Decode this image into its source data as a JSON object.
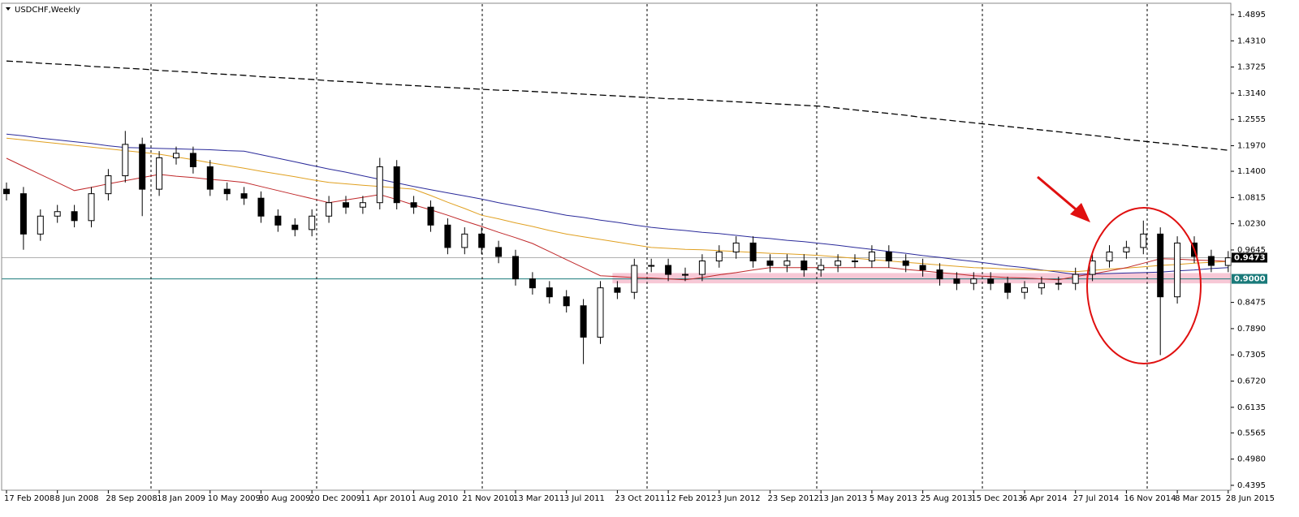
{
  "chart_data": {
    "type": "candlestick",
    "title": "USDCHF,Weekly",
    "categories": [
      "17 Feb 2008",
      null,
      null,
      "8 Jun 2008",
      null,
      null,
      "28 Sep 2008",
      null,
      null,
      "18 Jan 2009",
      null,
      null,
      "10 May 2009",
      null,
      null,
      "30 Aug 2009",
      null,
      null,
      "20 Dec 2009",
      null,
      null,
      "11 Apr 2010",
      null,
      null,
      "1 Aug 2010",
      null,
      null,
      "21 Nov 2010",
      null,
      null,
      "13 Mar 2011",
      null,
      null,
      "3 Jul 2011",
      null,
      null,
      "23 Oct 2011",
      null,
      null,
      "12 Feb 2012",
      null,
      null,
      "3 Jun 2012",
      null,
      null,
      "23 Sep 2012",
      null,
      null,
      "13 Jan 2013",
      null,
      null,
      "5 May 2013",
      null,
      null,
      "25 Aug 2013",
      null,
      null,
      "15 Dec 2013",
      null,
      null,
      "6 Apr 2014",
      null,
      null,
      "27 Jul 2014",
      null,
      null,
      "16 Nov 2014",
      null,
      null,
      "8 Mar 2015",
      null,
      null,
      "28 Jun 2015"
    ],
    "open": [
      1.1,
      1.09,
      1.0,
      1.04,
      1.05,
      1.03,
      1.09,
      1.13,
      1.2,
      1.1,
      1.17,
      1.18,
      1.15,
      1.1,
      1.09,
      1.08,
      1.04,
      1.02,
      1.01,
      1.04,
      1.07,
      1.06,
      1.07,
      1.15,
      1.07,
      1.06,
      1.02,
      0.97,
      1.0,
      0.97,
      0.95,
      0.9,
      0.88,
      0.86,
      0.84,
      0.77,
      0.88,
      0.87,
      0.93,
      0.93,
      0.91,
      0.91,
      0.94,
      0.96,
      0.98,
      0.94,
      0.93,
      0.94,
      0.92,
      0.93,
      0.94,
      0.94,
      0.96,
      0.94,
      0.93,
      0.92,
      0.9,
      0.89,
      0.9,
      0.89,
      0.87,
      0.88,
      0.89,
      0.89,
      0.91,
      0.94,
      0.96,
      0.97,
      1.0,
      0.86,
      0.98,
      0.95,
      0.93
    ],
    "high": [
      1.115,
      1.105,
      1.055,
      1.065,
      1.065,
      1.105,
      1.145,
      1.23,
      1.215,
      1.185,
      1.195,
      1.195,
      1.165,
      1.115,
      1.105,
      1.095,
      1.055,
      1.035,
      1.055,
      1.085,
      1.085,
      1.085,
      1.17,
      1.165,
      1.085,
      1.075,
      1.035,
      1.015,
      1.015,
      0.985,
      0.965,
      0.915,
      0.895,
      0.875,
      0.855,
      0.895,
      0.895,
      0.945,
      0.945,
      0.945,
      0.925,
      0.955,
      0.975,
      0.995,
      0.995,
      0.955,
      0.955,
      0.955,
      0.945,
      0.955,
      0.955,
      0.975,
      0.975,
      0.955,
      0.945,
      0.935,
      0.915,
      0.915,
      0.915,
      0.905,
      0.895,
      0.905,
      0.905,
      0.925,
      0.955,
      0.975,
      0.985,
      1.03,
      1.015,
      0.995,
      0.995,
      0.965,
      0.962
    ],
    "low": [
      1.075,
      0.965,
      0.985,
      1.025,
      1.015,
      1.015,
      1.075,
      1.115,
      1.04,
      1.085,
      1.155,
      1.135,
      1.085,
      1.075,
      1.065,
      1.025,
      1.005,
      0.995,
      0.995,
      1.025,
      1.045,
      1.045,
      1.055,
      1.055,
      1.045,
      1.005,
      0.955,
      0.955,
      0.955,
      0.935,
      0.885,
      0.865,
      0.845,
      0.825,
      0.71,
      0.755,
      0.855,
      0.855,
      0.915,
      0.895,
      0.895,
      0.895,
      0.925,
      0.945,
      0.925,
      0.915,
      0.915,
      0.905,
      0.905,
      0.915,
      0.925,
      0.925,
      0.925,
      0.915,
      0.905,
      0.885,
      0.875,
      0.875,
      0.875,
      0.855,
      0.855,
      0.865,
      0.875,
      0.875,
      0.895,
      0.925,
      0.945,
      0.955,
      0.73,
      0.845,
      0.935,
      0.915,
      0.915
    ],
    "close": [
      1.09,
      1.0,
      1.04,
      1.05,
      1.03,
      1.09,
      1.13,
      1.2,
      1.1,
      1.17,
      1.18,
      1.15,
      1.1,
      1.09,
      1.08,
      1.04,
      1.02,
      1.01,
      1.04,
      1.07,
      1.06,
      1.07,
      1.15,
      1.07,
      1.06,
      1.02,
      0.97,
      1.0,
      0.97,
      0.95,
      0.9,
      0.88,
      0.86,
      0.84,
      0.77,
      0.88,
      0.87,
      0.93,
      0.93,
      0.91,
      0.91,
      0.94,
      0.96,
      0.98,
      0.94,
      0.93,
      0.94,
      0.92,
      0.93,
      0.94,
      0.94,
      0.96,
      0.94,
      0.93,
      0.92,
      0.9,
      0.89,
      0.9,
      0.89,
      0.87,
      0.88,
      0.89,
      0.89,
      0.91,
      0.94,
      0.96,
      0.97,
      1.0,
      0.86,
      0.98,
      0.95,
      0.93,
      0.947
    ],
    "series": [
      {
        "color": "#000000",
        "dashed": true,
        "values": [
          1.386,
          1.384,
          1.381,
          1.379,
          1.377,
          1.374,
          1.372,
          1.37,
          1.368,
          1.365,
          1.363,
          1.361,
          1.358,
          1.356,
          1.354,
          1.351,
          1.349,
          1.347,
          1.345,
          1.342,
          1.34,
          1.338,
          1.335,
          1.333,
          1.331,
          1.329,
          1.327,
          1.325,
          1.323,
          1.321,
          1.32,
          1.318,
          1.316,
          1.314,
          1.312,
          1.31,
          1.308,
          1.306,
          1.304,
          1.302,
          1.301,
          1.299,
          1.297,
          1.295,
          1.293,
          1.291,
          1.289,
          1.287,
          1.285,
          1.281,
          1.277,
          1.273,
          1.269,
          1.265,
          1.26,
          1.256,
          1.252,
          1.248,
          1.244,
          1.24,
          1.236,
          1.232,
          1.228,
          1.224,
          1.22,
          1.216,
          1.211,
          1.207,
          1.203,
          1.199,
          1.195,
          1.191,
          1.187
        ]
      },
      {
        "color": "#2a2a9a",
        "dashed": false,
        "values": [
          1.223,
          1.219,
          1.214,
          1.21,
          1.206,
          1.202,
          1.197,
          1.193,
          1.192,
          1.191,
          1.19,
          1.189,
          1.188,
          1.186,
          1.185,
          1.177,
          1.169,
          1.161,
          1.153,
          1.145,
          1.138,
          1.13,
          1.122,
          1.114,
          1.106,
          1.099,
          1.092,
          1.085,
          1.078,
          1.07,
          1.063,
          1.056,
          1.049,
          1.042,
          1.037,
          1.031,
          1.026,
          1.02,
          1.015,
          1.011,
          1.008,
          1.004,
          1.001,
          0.997,
          0.993,
          0.99,
          0.986,
          0.983,
          0.979,
          0.975,
          0.97,
          0.966,
          0.961,
          0.957,
          0.952,
          0.948,
          0.943,
          0.939,
          0.934,
          0.929,
          0.925,
          0.92,
          0.915,
          0.91,
          0.911,
          0.912,
          0.913,
          0.914,
          0.915,
          0.918,
          0.92,
          0.923,
          0.925
        ]
      },
      {
        "color": "#e0a020",
        "dashed": false,
        "values": [
          1.214,
          1.21,
          1.206,
          1.202,
          1.198,
          1.194,
          1.19,
          1.186,
          1.182,
          1.178,
          1.172,
          1.166,
          1.159,
          1.153,
          1.147,
          1.14,
          1.134,
          1.128,
          1.121,
          1.115,
          1.112,
          1.109,
          1.106,
          1.103,
          1.1,
          1.086,
          1.071,
          1.057,
          1.042,
          1.034,
          1.025,
          1.017,
          1.008,
          1.0,
          0.994,
          0.988,
          0.982,
          0.976,
          0.97,
          0.968,
          0.966,
          0.965,
          0.963,
          0.961,
          0.959,
          0.957,
          0.956,
          0.954,
          0.952,
          0.949,
          0.946,
          0.943,
          0.94,
          0.937,
          0.934,
          0.931,
          0.928,
          0.925,
          0.924,
          0.922,
          0.921,
          0.919,
          0.918,
          0.916,
          0.919,
          0.922,
          0.924,
          0.927,
          0.93,
          0.932,
          0.935,
          0.937,
          0.939
        ]
      },
      {
        "color": "#c0282a",
        "dashed": false,
        "values": [
          1.169,
          1.151,
          1.133,
          1.115,
          1.097,
          1.104,
          1.112,
          1.119,
          1.126,
          1.133,
          1.129,
          1.126,
          1.122,
          1.119,
          1.115,
          1.106,
          1.097,
          1.088,
          1.079,
          1.07,
          1.076,
          1.082,
          1.088,
          1.077,
          1.065,
          1.054,
          1.042,
          1.029,
          1.017,
          1.004,
          0.992,
          0.979,
          0.961,
          0.943,
          0.925,
          0.907,
          0.905,
          0.903,
          0.902,
          0.9,
          0.898,
          0.903,
          0.909,
          0.914,
          0.92,
          0.925,
          0.925,
          0.925,
          0.925,
          0.925,
          0.925,
          0.925,
          0.925,
          0.921,
          0.918,
          0.914,
          0.911,
          0.907,
          0.905,
          0.903,
          0.902,
          0.9,
          0.898,
          0.905,
          0.911,
          0.918,
          0.925,
          0.935,
          0.945,
          0.944,
          0.942,
          0.941,
          0.939
        ]
      }
    ],
    "price_lines": [
      {
        "value": 0.9473,
        "label": "0.9473",
        "color": "#b0b0b0",
        "label_bg": "#000000"
      },
      {
        "value": 0.9,
        "label": "0.9000",
        "color": "#1a7a7a",
        "label_bg": "#1a7a7a"
      }
    ],
    "zone": {
      "low": 0.89,
      "high": 0.913,
      "color": "#f4b6c8"
    },
    "ylim": [
      0.4286,
      1.513
    ],
    "yticks": [
      1.4895,
      {
        "value": 1.431,
        "label": "1.4310"
      },
      1.3725,
      {
        "value": 1.314,
        "label": "1.3140"
      },
      1.2555,
      {
        "value": 1.197,
        "label": "1.1970"
      },
      {
        "value": 1.14,
        "label": "1.1400"
      },
      1.0815,
      {
        "value": 1.023,
        "label": "1.0230"
      },
      0.9645,
      0.8475,
      {
        "value": 0.789,
        "label": "0.7890"
      },
      0.7305,
      {
        "value": 0.672,
        "label": "0.6720"
      },
      0.6135,
      0.5565,
      {
        "value": 0.498,
        "label": "0.4980"
      },
      0.4395
    ]
  }
}
